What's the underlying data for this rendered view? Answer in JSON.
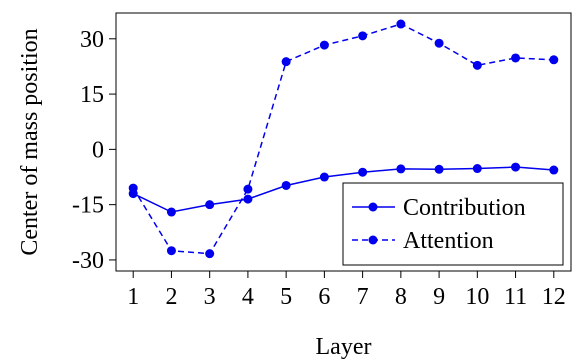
{
  "chart_data": {
    "type": "line",
    "xlabel": "Layer",
    "ylabel": "Center of mass position",
    "x": [
      1,
      2,
      3,
      4,
      5,
      6,
      7,
      8,
      9,
      10,
      11,
      12
    ],
    "xticks": [
      "1",
      "2",
      "3",
      "4",
      "5",
      "6",
      "7",
      "8",
      "9",
      "10",
      "11",
      "12"
    ],
    "yticks": [
      {
        "value": 30,
        "label": "30"
      },
      {
        "value": 15,
        "label": "15"
      },
      {
        "value": 0,
        "label": "0"
      },
      {
        "value": -15,
        "label": "-15"
      },
      {
        "value": -30,
        "label": "-30"
      }
    ],
    "ylim": [
      -33,
      37
    ],
    "xlim": [
      0.55,
      12.45
    ],
    "grid": false,
    "legend_position": "bottom-right",
    "series": [
      {
        "name": "Contribution",
        "style": "solid",
        "color": "#0000ee",
        "values": [
          -12,
          -17,
          -15,
          -13.5,
          -9.8,
          -7.5,
          -6.2,
          -5.3,
          -5.4,
          -5.2,
          -4.8,
          -5.6
        ]
      },
      {
        "name": "Attention",
        "style": "dashed",
        "color": "#0000ee",
        "values": [
          -10.5,
          -27.5,
          -28.3,
          -10.8,
          23.8,
          28.3,
          30.8,
          34,
          28.8,
          22.8,
          24.8,
          24.3
        ]
      }
    ]
  }
}
